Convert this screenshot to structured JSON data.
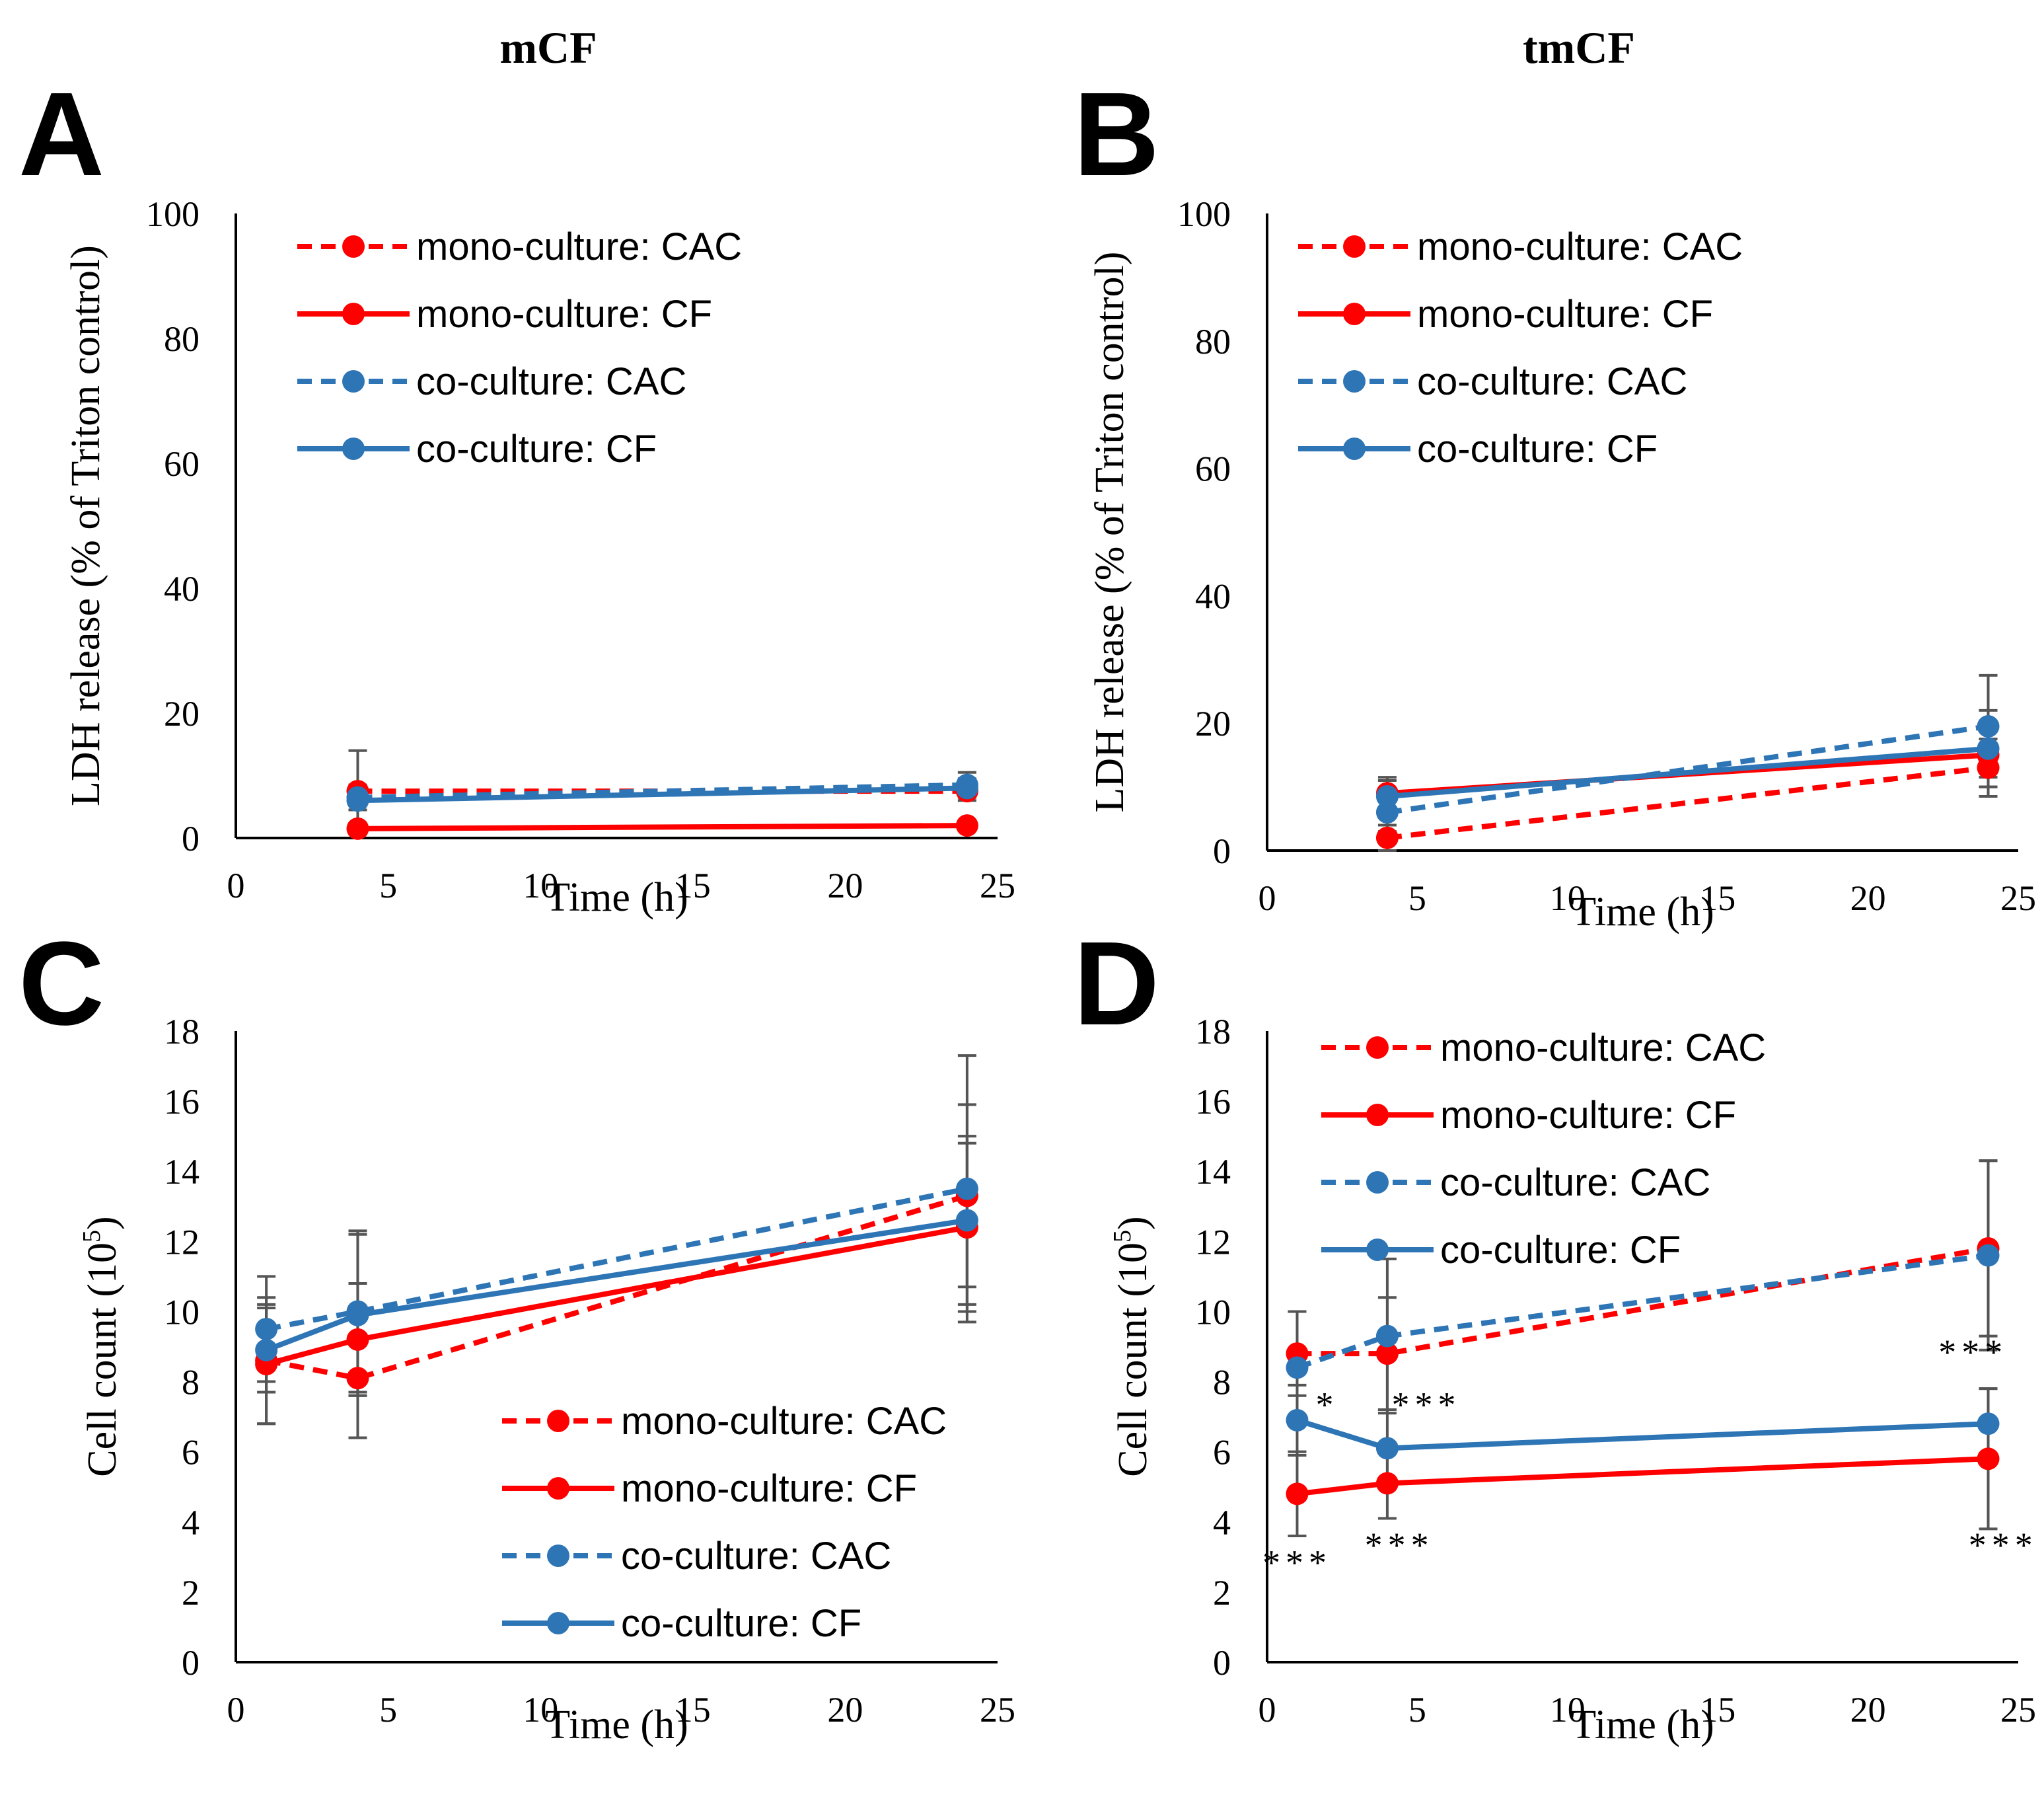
{
  "column_titles": [
    "mCF",
    "tmCF"
  ],
  "colors": {
    "red": "#ff0000",
    "blue": "#2e75b6",
    "error": "#555555",
    "axis": "#000000"
  },
  "chart_data": [
    {
      "type": "line",
      "panel": "A",
      "xlabel": "Time (h)",
      "ylabel": "LDH release (% of Triton control)",
      "xlim": [
        0,
        25
      ],
      "xticks": [
        0,
        5,
        10,
        15,
        20,
        25
      ],
      "ylim": [
        0,
        100
      ],
      "yticks": [
        0,
        20,
        40,
        60,
        80,
        100
      ],
      "legend_position": "top-left",
      "series": [
        {
          "name": "mono-culture: CAC",
          "color": "#ff0000",
          "dash": true,
          "x": [
            4,
            24
          ],
          "values": [
            7.5,
            7.5
          ],
          "err": [
            6.5,
            1.5
          ]
        },
        {
          "name": "mono-culture: CF",
          "color": "#ff0000",
          "dash": false,
          "x": [
            4,
            24
          ],
          "values": [
            1.5,
            2.0
          ],
          "err": [
            0.8,
            0.8
          ]
        },
        {
          "name": "co-culture: CAC",
          "color": "#2e75b6",
          "dash": true,
          "x": [
            4,
            24
          ],
          "values": [
            6.5,
            8.5
          ],
          "err": [
            2.0,
            2.0
          ]
        },
        {
          "name": "co-culture: CF",
          "color": "#2e75b6",
          "dash": false,
          "x": [
            4,
            24
          ],
          "values": [
            6.0,
            8.0
          ],
          "err": [
            1.5,
            1.5
          ]
        }
      ],
      "annotations": []
    },
    {
      "type": "line",
      "panel": "B",
      "xlabel": "Time (h)",
      "ylabel": "LDH release (% of Triton control)",
      "xlim": [
        0,
        25
      ],
      "xticks": [
        0,
        5,
        10,
        15,
        20,
        25
      ],
      "ylim": [
        0,
        100
      ],
      "yticks": [
        0,
        20,
        40,
        60,
        80,
        100
      ],
      "legend_position": "top-left",
      "series": [
        {
          "name": "mono-culture: CAC",
          "color": "#ff0000",
          "dash": true,
          "x": [
            4,
            24
          ],
          "values": [
            2.0,
            13.0
          ],
          "err": [
            2.0,
            4.5
          ]
        },
        {
          "name": "mono-culture: CF",
          "color": "#ff0000",
          "dash": false,
          "x": [
            4,
            24
          ],
          "values": [
            9.0,
            15.0
          ],
          "err": [
            2.5,
            5.0
          ]
        },
        {
          "name": "co-culture: CAC",
          "color": "#2e75b6",
          "dash": true,
          "x": [
            4,
            24
          ],
          "values": [
            6.0,
            19.5
          ],
          "err": [
            3.0,
            8.0
          ]
        },
        {
          "name": "co-culture: CF",
          "color": "#2e75b6",
          "dash": false,
          "x": [
            4,
            24
          ],
          "values": [
            8.5,
            16.0
          ],
          "err": [
            2.5,
            6.0
          ]
        }
      ],
      "annotations": []
    },
    {
      "type": "line",
      "panel": "C",
      "xlabel": "Time (h)",
      "ylabel": "Cell count (10",
      "ylabel_sup": "5",
      "ylabel_end": ")",
      "xlim": [
        0,
        25
      ],
      "xticks": [
        0,
        5,
        10,
        15,
        20,
        25
      ],
      "ylim": [
        0,
        18
      ],
      "yticks": [
        0,
        2,
        4,
        6,
        8,
        10,
        12,
        14,
        16,
        18
      ],
      "legend_position": "bottom-right",
      "series": [
        {
          "name": "mono-culture: CAC",
          "color": "#ff0000",
          "dash": true,
          "x": [
            1,
            4,
            24
          ],
          "values": [
            8.6,
            8.1,
            13.3
          ],
          "err": [
            1.8,
            1.7,
            2.6
          ]
        },
        {
          "name": "mono-culture: CF",
          "color": "#ff0000",
          "dash": false,
          "x": [
            1,
            4,
            24
          ],
          "values": [
            8.5,
            9.2,
            12.4
          ],
          "err": [
            1.7,
            1.6,
            2.4
          ]
        },
        {
          "name": "co-culture: CAC",
          "color": "#2e75b6",
          "dash": true,
          "x": [
            1,
            4,
            24
          ],
          "values": [
            9.5,
            10.0,
            13.5
          ],
          "err": [
            1.5,
            2.3,
            3.8
          ]
        },
        {
          "name": "co-culture: CF",
          "color": "#2e75b6",
          "dash": false,
          "x": [
            1,
            4,
            24
          ],
          "values": [
            8.9,
            9.9,
            12.6
          ],
          "err": [
            1.2,
            2.3,
            2.4
          ]
        }
      ],
      "annotations": []
    },
    {
      "type": "line",
      "panel": "D",
      "xlabel": "Time (h)",
      "ylabel": "Cell  count (10",
      "ylabel_sup": "5",
      "ylabel_end": ")",
      "xlim": [
        0,
        25
      ],
      "xticks": [
        0,
        5,
        10,
        15,
        20,
        25
      ],
      "ylim": [
        0,
        18
      ],
      "yticks": [
        0,
        2,
        4,
        6,
        8,
        10,
        12,
        14,
        16,
        18
      ],
      "legend_position": "top-left",
      "series": [
        {
          "name": "mono-culture: CAC",
          "color": "#ff0000",
          "dash": true,
          "x": [
            1,
            4,
            24
          ],
          "values": [
            8.8,
            8.8,
            11.8
          ],
          "err": [
            1.2,
            1.6,
            2.5
          ]
        },
        {
          "name": "mono-culture: CF",
          "color": "#ff0000",
          "dash": false,
          "x": [
            1,
            4,
            24
          ],
          "values": [
            4.8,
            5.1,
            5.8
          ],
          "err": [
            1.2,
            1.0,
            2.0
          ]
        },
        {
          "name": "co-culture: CAC",
          "color": "#2e75b6",
          "dash": true,
          "x": [
            1,
            4,
            24
          ],
          "values": [
            8.4,
            9.3,
            11.6
          ],
          "err": [
            1.6,
            2.2,
            2.7
          ]
        },
        {
          "name": "co-culture: CF",
          "color": "#2e75b6",
          "dash": false,
          "x": [
            1,
            4,
            24
          ],
          "values": [
            6.9,
            6.1,
            6.8
          ],
          "err": [
            1.0,
            1.1,
            1.0
          ]
        }
      ],
      "annotations": [
        {
          "text": "*",
          "x": 2.0,
          "y": 7.0
        },
        {
          "text": "***",
          "x": 5.3,
          "y": 7.0
        },
        {
          "text": "***",
          "x": 23.5,
          "y": 8.5
        },
        {
          "text": "***",
          "x": 1.0,
          "y": 2.5
        },
        {
          "text": "***",
          "x": 4.4,
          "y": 3.0
        },
        {
          "text": "***",
          "x": 24.5,
          "y": 3.0
        }
      ]
    }
  ]
}
